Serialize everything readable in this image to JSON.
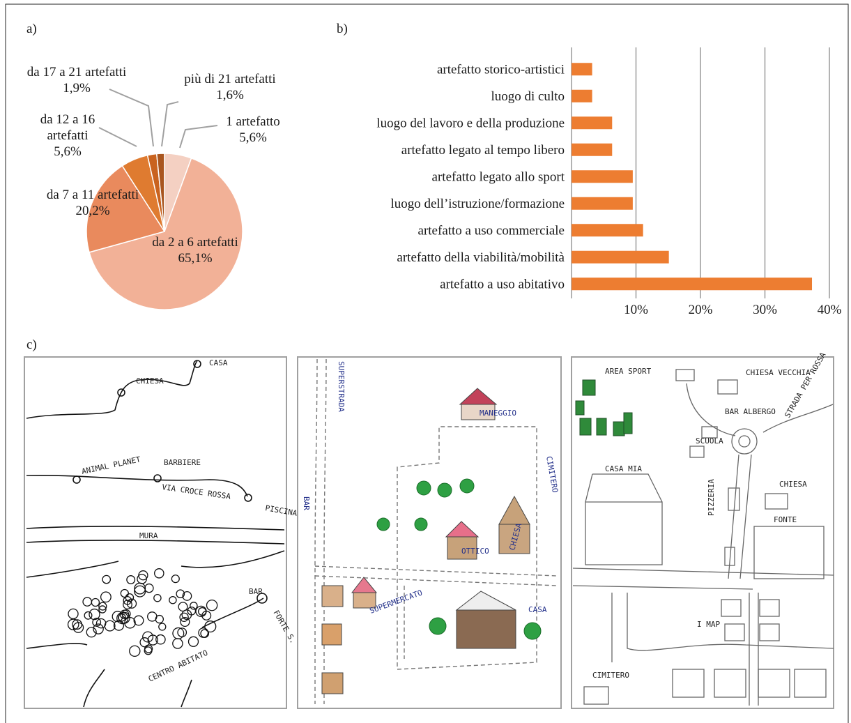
{
  "chart_data": [
    {
      "type": "pie",
      "title": "a)",
      "categories": [
        "1 artefatto",
        "da 2 a 6 artefatti",
        "da 7 a 11 artefatti",
        "da 12 a 16 artefatti",
        "da 17 a 21 artefatti",
        "più di 21 artefatti"
      ],
      "values": [
        5.6,
        65.1,
        20.2,
        5.6,
        1.9,
        1.6
      ],
      "value_labels": [
        "5,6%",
        "65,1%",
        "20,2%",
        "5,6%",
        "1,9%",
        "1,6%"
      ],
      "colors": [
        "#f4d0c2",
        "#f2b197",
        "#e98a5d",
        "#df7b30",
        "#c9631f",
        "#a9561f"
      ]
    },
    {
      "type": "bar",
      "title": "b)",
      "orientation": "horizontal",
      "categories": [
        "artefatto storico-artistici",
        "luogo di culto",
        "luogo del lavoro e della produzione",
        "artefatto legato al tempo libero",
        "artefatto legato allo sport",
        "luogo dell’istruzione/formazione",
        "artefatto a uso commerciale",
        "artefatto della viabilità/mobilità",
        "artefatto a uso abitativo"
      ],
      "values": [
        3.2,
        3.2,
        6.3,
        6.3,
        9.5,
        9.5,
        11.1,
        15.1,
        37.3
      ],
      "color": "#ed7d31",
      "xlim": [
        0,
        40
      ],
      "xticks": [
        {
          "value": 10,
          "label": "10%"
        },
        {
          "value": 20,
          "label": "20%"
        },
        {
          "value": 30,
          "label": "30%"
        },
        {
          "value": 40,
          "label": "40%"
        }
      ],
      "grid": true
    }
  ],
  "drawings_panel": {
    "label": "c)",
    "drawings": [
      {
        "labels": [
          "CASA",
          "CHIESA",
          "ANIMAL PLANET",
          "BARBIERE",
          "VIA CROCE ROSSA",
          "PISCINA",
          "MURA",
          "BAR",
          "FORTE S.",
          "CENTRO ABITATO"
        ]
      },
      {
        "labels": [
          "SUPERSTRADA",
          "MANEGGIO",
          "CIMITERO",
          "BAR",
          "OTTICO",
          "CHIESA",
          "CASA",
          "SUPERMERCATO"
        ]
      },
      {
        "labels": [
          "AREA SPORT",
          "CHIESA VECCHIA",
          "STRADA PER ROSSA",
          "BAR ALBERGO",
          "SCUOLA",
          "CASA MIA",
          "CHIESA",
          "FONTE",
          "PIZZERIA",
          "I MAP",
          "CIMITERO"
        ]
      }
    ]
  }
}
